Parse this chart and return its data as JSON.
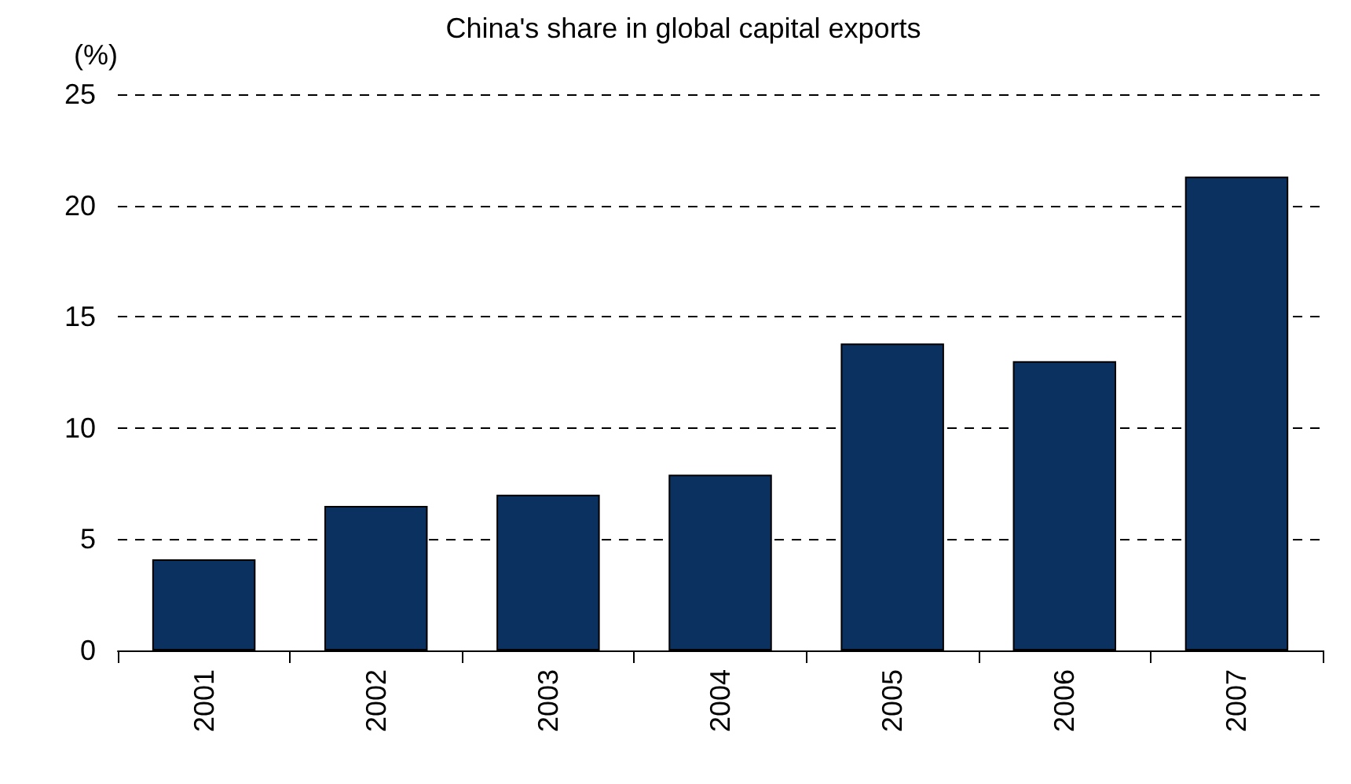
{
  "chart_data": {
    "type": "bar",
    "title": "China's share in global capital exports",
    "ylabel": "(%)",
    "categories": [
      "2001",
      "2002",
      "2003",
      "2004",
      "2005",
      "2006",
      "2007"
    ],
    "values": [
      4.1,
      6.5,
      7.0,
      7.9,
      13.8,
      13.0,
      21.3
    ],
    "color": "#0b3160",
    "ylim": [
      0,
      25
    ],
    "yticks": [
      0,
      5,
      10,
      15,
      20,
      25
    ],
    "grid": "y"
  }
}
